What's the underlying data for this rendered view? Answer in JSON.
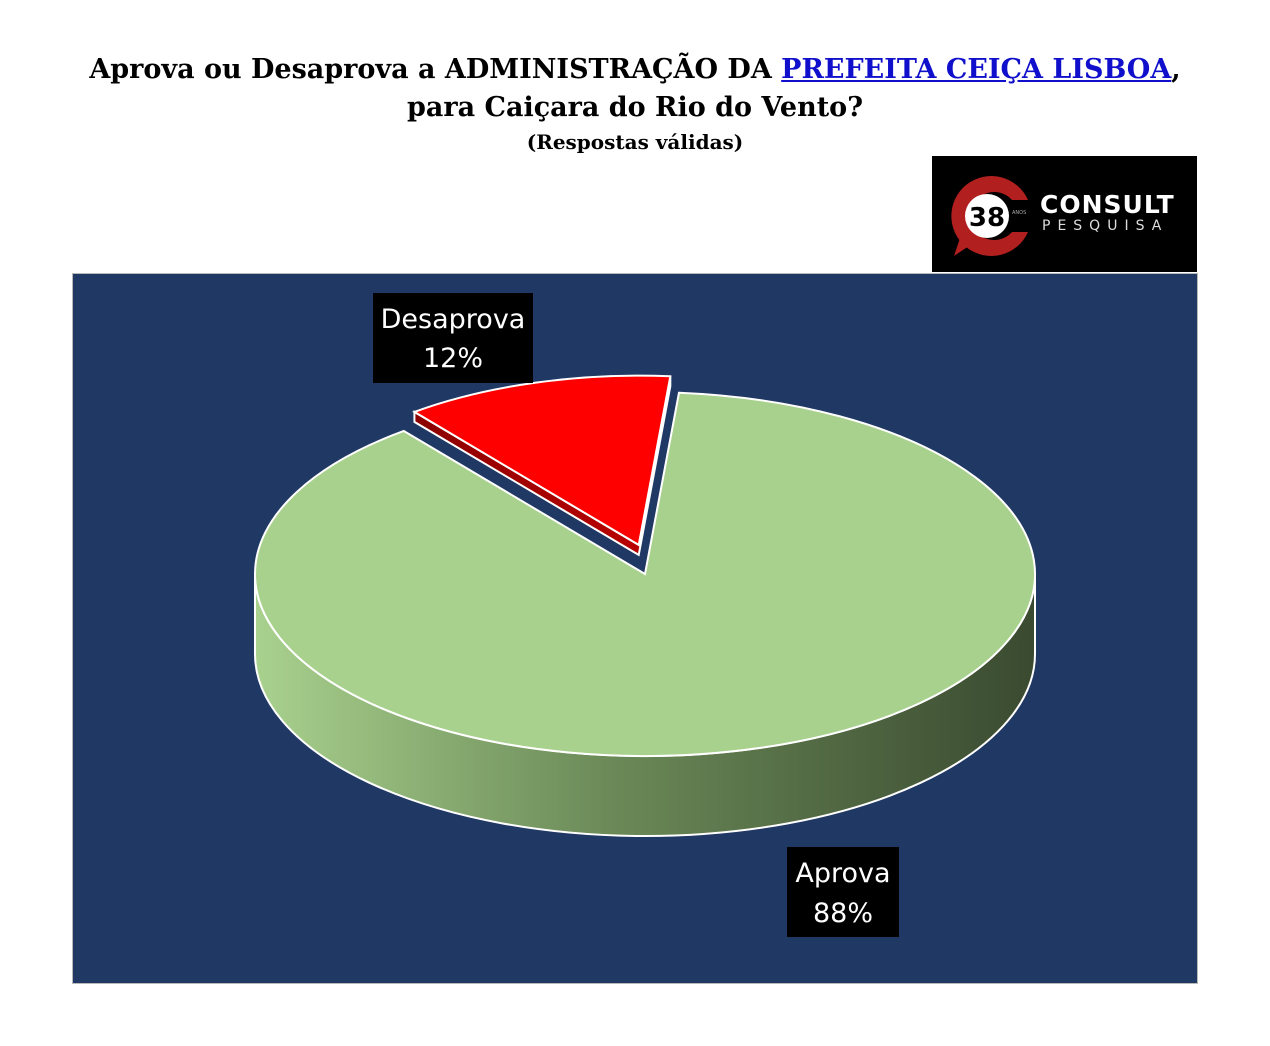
{
  "header": {
    "title_line1_prefix": "Aprova ou Desaprova a ADMINISTRAÇÃO DA ",
    "title_line1_highlight": "PREFEITA CEIÇA LISBOA",
    "title_line1_suffix": ",",
    "title_line2": "para Caiçara do Rio do Vento?",
    "subtitle": "(Respostas válidas)"
  },
  "logo": {
    "number": "38",
    "small_text": "ANOS",
    "brand": "CONSULT",
    "sub": "PESQUISA"
  },
  "chart_data": {
    "type": "pie",
    "title": "Aprova ou Desaprova a ADMINISTRAÇÃO DA PREFEITA CEIÇA LISBOA, para Caiçara do Rio do Vento?",
    "subtitle": "(Respostas válidas)",
    "categories": [
      "Aprova",
      "Desaprova"
    ],
    "values": [
      88,
      12
    ],
    "value_labels": [
      "88%",
      "12%"
    ],
    "colors": [
      "#a9d18e",
      "#ff0000"
    ],
    "background": "#203864",
    "exploded": "Desaprova",
    "legend": "none"
  }
}
